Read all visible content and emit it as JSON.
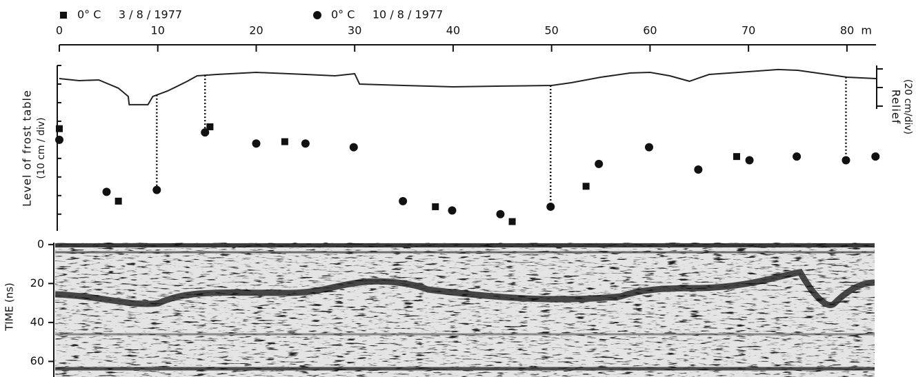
{
  "chart_data": {
    "type": "scatter",
    "xlim": [
      0,
      82.95
    ],
    "xticks": [
      0,
      10,
      20,
      30,
      40,
      50,
      60,
      70,
      {
        "value": 80,
        "label": "80  m"
      }
    ],
    "ylabel": "Level  of  frost  table",
    "ylabel_unit": "(10 cm / div)",
    "ylim": [
      -89,
      0
    ],
    "yticks": [
      0,
      -10,
      -20,
      -30,
      -40,
      -50,
      -60,
      -70,
      -80
    ],
    "y2label": "Relief",
    "y2label_unit": "(20 cm/div)",
    "y2lim": [
      -43,
      3.7
    ],
    "y2ticks": [
      0,
      -20,
      -40
    ],
    "series": [
      {
        "name": "0° C     3 / 8 / 1977",
        "marker": "square",
        "color": "#111111",
        "x": [
          0,
          6,
          15.3,
          22.9,
          38.2,
          46,
          53.5,
          68.8
        ],
        "values": [
          -34,
          -73,
          -33,
          -41,
          -76,
          -84,
          -65,
          -49
        ]
      },
      {
        "name": "0° C     10 / 8 / 1977",
        "marker": "circle",
        "color": "#111111",
        "x": [
          0,
          4.8,
          9.9,
          14.8,
          20,
          25,
          29.9,
          34.9,
          39.9,
          44.8,
          49.9,
          54.8,
          59.9,
          64.9,
          70.1,
          74.9,
          79.9,
          82.9
        ],
        "values": [
          -40,
          -68,
          -67,
          -36,
          -42,
          -42,
          -44,
          -73,
          -78,
          -80,
          -76,
          -53,
          -44,
          -56,
          -51,
          -49,
          -51,
          -49
        ]
      },
      {
        "name": "Relief",
        "type": "line",
        "axis": "y2",
        "color": "#222222",
        "x": [
          0,
          2,
          4,
          6,
          7,
          7.1,
          9,
          9.5,
          11,
          13,
          14,
          16,
          20,
          25,
          28,
          30,
          30.5,
          35,
          40,
          45,
          50,
          52,
          55,
          58,
          60,
          62,
          64,
          66,
          70,
          73,
          75,
          78,
          80,
          82.95
        ],
        "values": [
          -10.4,
          -12.6,
          -11.9,
          -20.7,
          -29.6,
          -38.5,
          -38.5,
          -29.6,
          -23.7,
          -13.3,
          -7.4,
          -5.9,
          -3.7,
          -5.9,
          -7.4,
          -5.2,
          -16.3,
          -17.8,
          -19.3,
          -18.5,
          -17.8,
          -14.8,
          -8.9,
          -4.4,
          -3.7,
          -7.4,
          -13.3,
          -5.9,
          -3.0,
          -0.7,
          -1.5,
          -5.9,
          -8.9,
          -10.4
        ]
      }
    ],
    "tlabel": "TIME (ns)",
    "tlim": [
      -1,
      68
    ],
    "tticks": [
      0,
      20,
      40,
      60
    ]
  }
}
